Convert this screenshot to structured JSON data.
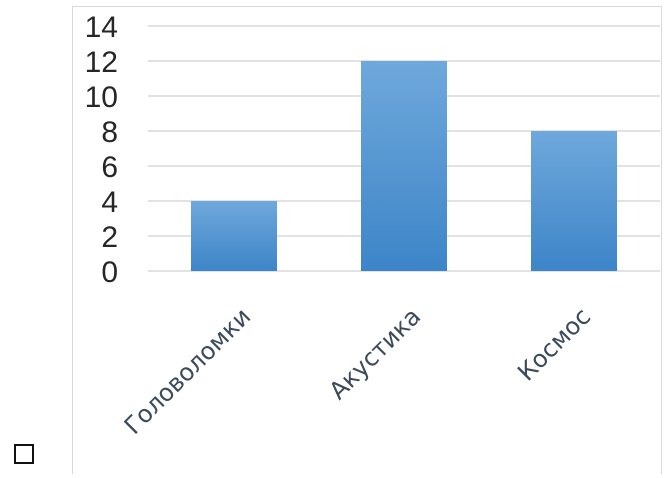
{
  "chart_data": {
    "type": "bar",
    "categories": [
      "Головоломки",
      "Акустика",
      "Космос"
    ],
    "values": [
      4,
      12,
      8
    ],
    "title": "",
    "xlabel": "",
    "ylabel": "",
    "ylim": [
      0,
      14
    ],
    "yticks": [
      "0",
      "2",
      "4",
      "6",
      "8",
      "10",
      "12",
      "14"
    ],
    "grid": true,
    "legend": "none",
    "colors": {
      "bar_top": "#6fa8dc",
      "bar_bottom": "#3d85c8",
      "grid": "#d9d9d9"
    }
  },
  "footer": {
    "checkbox_icon": "checkbox-empty-icon"
  }
}
